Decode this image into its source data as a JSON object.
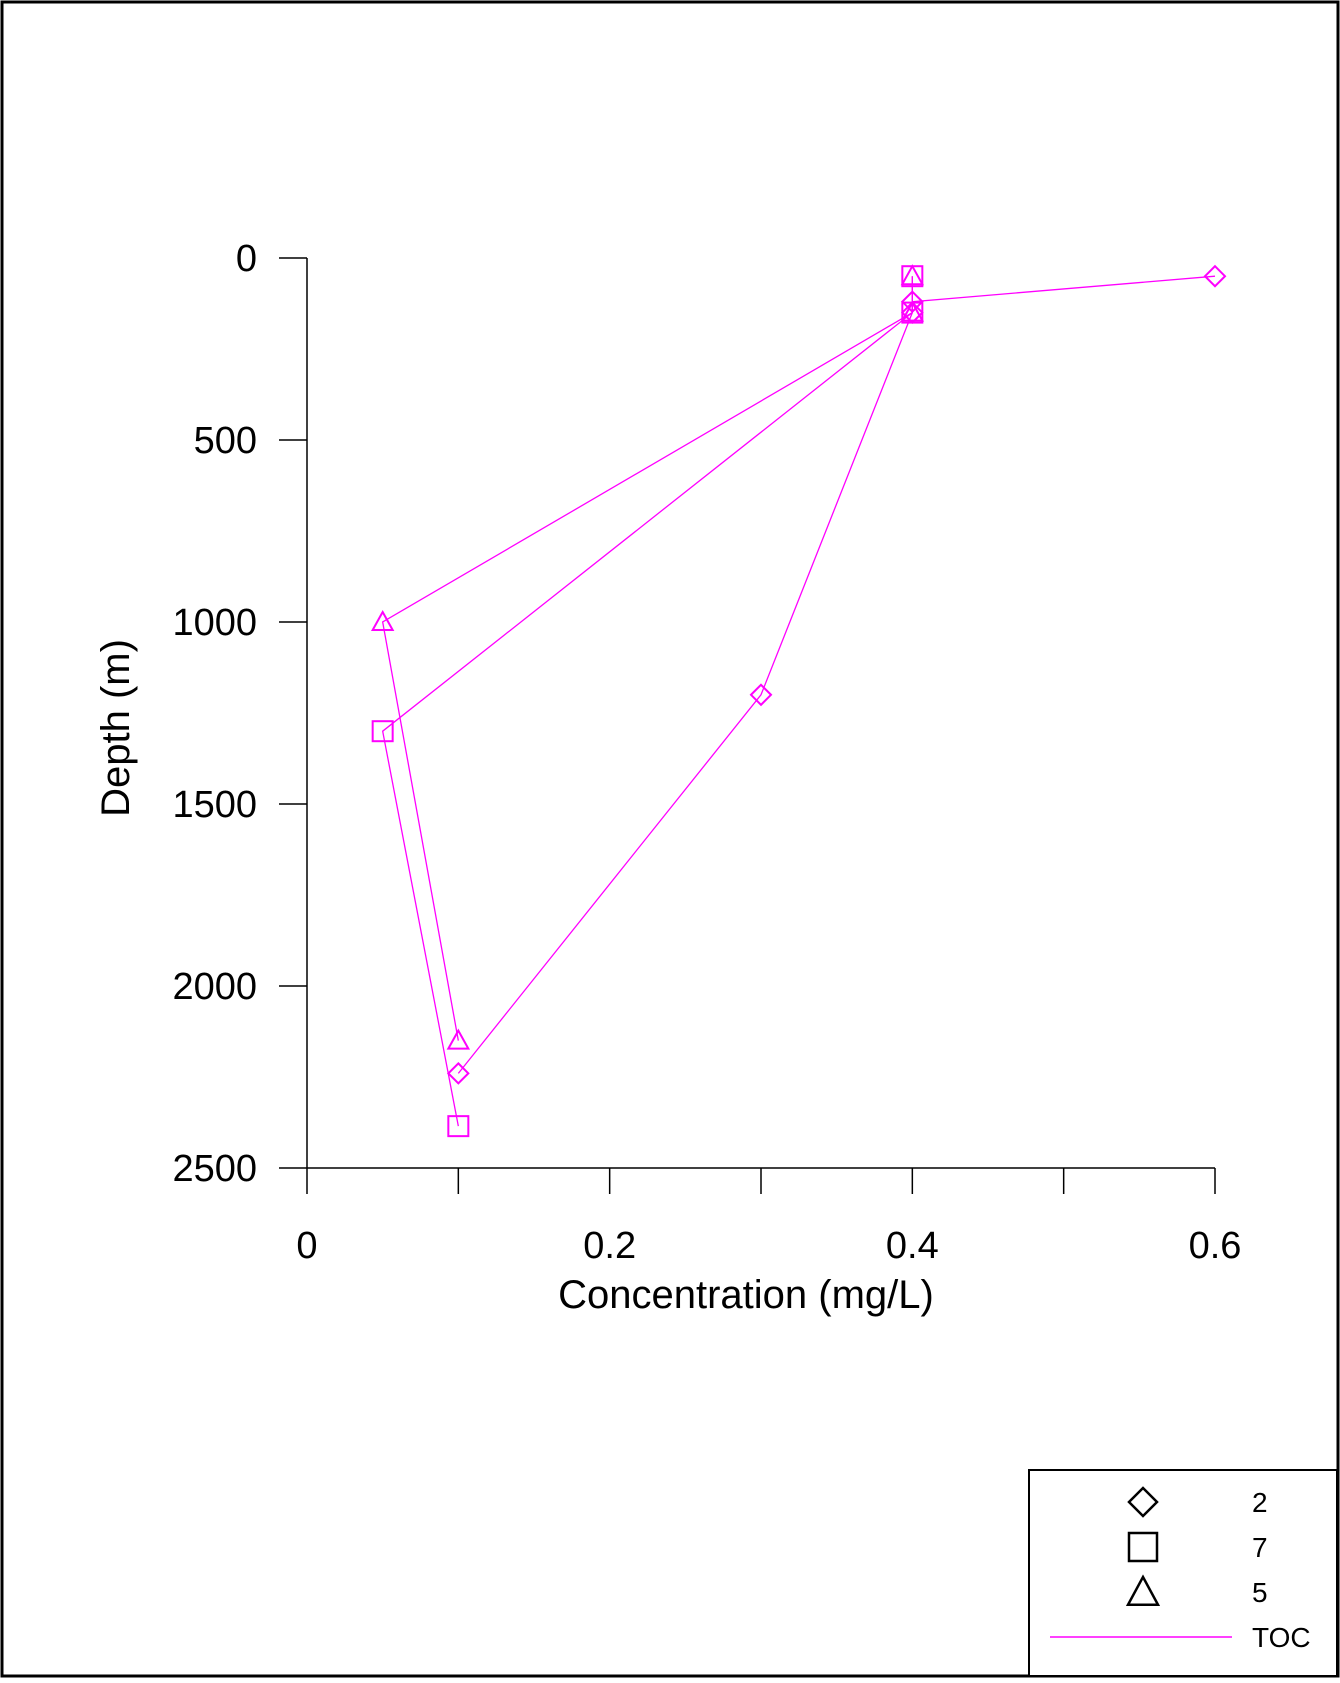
{
  "chart_data": {
    "type": "line",
    "xlabel": "Concentration (mg/L)",
    "ylabel": "Depth (m)",
    "xlim": [
      0,
      0.6
    ],
    "ylim": [
      0,
      2500
    ],
    "y_inverted": true,
    "xticks": [
      0,
      0.2,
      0.4,
      0.6
    ],
    "xtick_labels": [
      "0",
      "0.2",
      "0.4",
      "0.6"
    ],
    "x_minor_ticks": [
      0.1,
      0.3,
      0.5
    ],
    "yticks": [
      0,
      500,
      1000,
      1500,
      2000,
      2500
    ],
    "ytick_labels": [
      "0",
      "500",
      "1000",
      "1500",
      "2000",
      "2500"
    ],
    "grid": false,
    "legend_position": "bottom-right",
    "line_color": "#ff00ff",
    "series": [
      {
        "name": "2",
        "marker": "diamond",
        "points": [
          {
            "x": 0.6,
            "y": 50
          },
          {
            "x": 0.4,
            "y": 120
          },
          {
            "x": 0.4,
            "y": 150
          },
          {
            "x": 0.3,
            "y": 1200
          },
          {
            "x": 0.1,
            "y": 2240
          }
        ]
      },
      {
        "name": "7",
        "marker": "square",
        "points": [
          {
            "x": 0.4,
            "y": 50
          },
          {
            "x": 0.4,
            "y": 150
          },
          {
            "x": 0.05,
            "y": 1300
          },
          {
            "x": 0.1,
            "y": 2385
          }
        ]
      },
      {
        "name": "5",
        "marker": "triangle",
        "points": [
          {
            "x": 0.4,
            "y": 50
          },
          {
            "x": 0.4,
            "y": 150
          },
          {
            "x": 0.05,
            "y": 1000
          },
          {
            "x": 0.1,
            "y": 2150
          }
        ]
      }
    ],
    "legend": {
      "items": [
        {
          "marker": "diamond",
          "label": "2"
        },
        {
          "marker": "square",
          "label": "7"
        },
        {
          "marker": "triangle",
          "label": "5"
        },
        {
          "marker": "line",
          "label": "TOC"
        }
      ]
    }
  }
}
